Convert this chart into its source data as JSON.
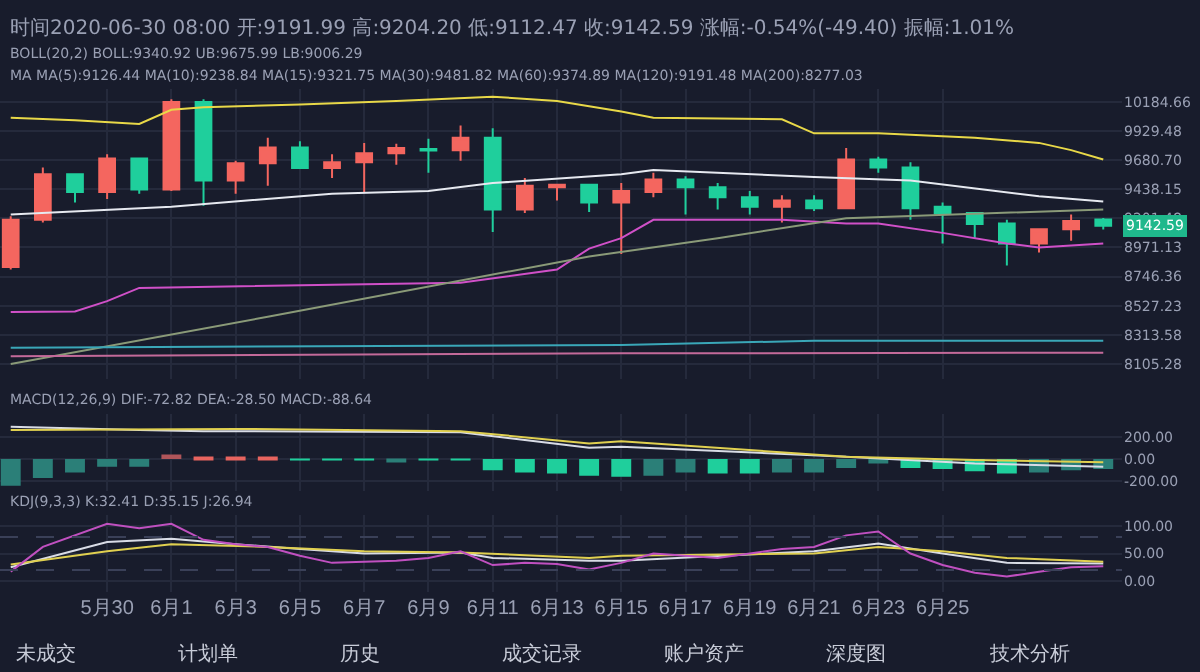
{
  "chart_data": [
    {
      "type": "candlestick",
      "title": "时间2020-06-30 08:00 开:9191.99 高:9204.20 低:9112.47 收:9142.59 涨幅:-0.54%(-49.40) 振幅:1.01%",
      "annotations": [
        "BOLL(20,2) BOLL:9340.92 UB:9675.99 LB:9006.29",
        "MA MA(5):9126.44 MA(10):9238.84 MA(15):9321.75 MA(30):9481.82 MA(60):9374.89 MA(120):9191.48 MA(200):8277.03",
        {
          "text": "9142.59",
          "y": 9142.59
        }
      ],
      "x": [
        "2020-05-27",
        "2020-05-28",
        "2020-05-29",
        "2020-05-30",
        "2020-05-31",
        "2020-06-01",
        "2020-06-02",
        "2020-06-03",
        "2020-06-04",
        "2020-06-05",
        "2020-06-06",
        "2020-06-07",
        "2020-06-08",
        "2020-06-09",
        "2020-06-10",
        "2020-06-11",
        "2020-06-12",
        "2020-06-13",
        "2020-06-14",
        "2020-06-15",
        "2020-06-16",
        "2020-06-17",
        "2020-06-18",
        "2020-06-19",
        "2020-06-20",
        "2020-06-21",
        "2020-06-22",
        "2020-06-23",
        "2020-06-24",
        "2020-06-25",
        "2020-06-26",
        "2020-06-27",
        "2020-06-28",
        "2020-06-29",
        "2020-06-30"
      ],
      "ohlc": [
        [
          8819,
          9218,
          8799,
          9189
        ],
        [
          9189,
          9618,
          9168,
          9561
        ],
        [
          9561,
          9565,
          9328,
          9414
        ],
        [
          9414,
          9729,
          9358,
          9693
        ],
        [
          9693,
          9700,
          9401,
          9435
        ],
        [
          9435,
          10206,
          9422,
          10183
        ],
        [
          10183,
          10206,
          9303,
          9509
        ],
        [
          9509,
          9675,
          9401,
          9653
        ],
        [
          9653,
          9871,
          9466,
          9787
        ],
        [
          9787,
          9840,
          9614,
          9614
        ],
        [
          9614,
          9729,
          9531,
          9662
        ],
        [
          9662,
          9826,
          9410,
          9737
        ],
        [
          9737,
          9818,
          9640,
          9782
        ],
        [
          9773,
          9862,
          9574,
          9760
        ],
        [
          9764,
          9976,
          9675,
          9871
        ],
        [
          9871,
          9953,
          9093,
          9273
        ],
        [
          9273,
          9531,
          9244,
          9466
        ],
        [
          9453,
          9480,
          9345,
          9474
        ],
        [
          9474,
          9480,
          9252,
          9328
        ],
        [
          9328,
          9488,
          8920,
          9422
        ],
        [
          9414,
          9574,
          9371,
          9518
        ],
        [
          9518,
          9544,
          9231,
          9453
        ],
        [
          9453,
          9488,
          9273,
          9371
        ],
        [
          9371,
          9422,
          9231,
          9294
        ],
        [
          9294,
          9388,
          9168,
          9345
        ],
        [
          9345,
          9388,
          9260,
          9282
        ],
        [
          9282,
          9782,
          9275,
          9685
        ],
        [
          9685,
          9707,
          9574,
          9618
        ],
        [
          9618,
          9662,
          9189,
          9282
        ],
        [
          9294,
          9328,
          9002,
          9239
        ],
        [
          9244,
          9250,
          9043,
          9155
        ],
        [
          9160,
          9189,
          8831,
          9002
        ],
        [
          9002,
          9120,
          8932,
          9114
        ],
        [
          9114,
          9231,
          9023,
          9180
        ],
        [
          9191.99,
          9204.2,
          9112.47,
          9142.59
        ]
      ],
      "colors": [
        "#f4665f",
        "#f4665f",
        "#1fcf9c",
        "#f4665f",
        "#1fcf9c",
        "#f4665f",
        "#1fcf9c",
        "#f4665f",
        "#f4665f",
        "#1fcf9c",
        "#f4665f",
        "#f4665f",
        "#f4665f",
        "#1fcf9c",
        "#f4665f",
        "#1fcf9c",
        "#f4665f",
        "#f4665f",
        "#1fcf9c",
        "#f4665f",
        "#f4665f",
        "#1fcf9c",
        "#1fcf9c",
        "#1fcf9c",
        "#f4665f",
        "#1fcf9c",
        "#f4665f",
        "#1fcf9c",
        "#1fcf9c",
        "#1fcf9c",
        "#1fcf9c",
        "#1fcf9c",
        "#f4665f",
        "#f4665f",
        "#1fcf9c"
      ],
      "series": [
        {
          "type": "line",
          "color": "#e8d848",
          "x": [
            "2020-05-27",
            "2020-05-29",
            "2020-05-31",
            "2020-06-01",
            "2020-06-02",
            "2020-06-05",
            "2020-06-08",
            "2020-06-11",
            "2020-06-13",
            "2020-06-14",
            "2020-06-15",
            "2020-06-16",
            "2020-06-20",
            "2020-06-21",
            "2020-06-23",
            "2020-06-26",
            "2020-06-28",
            "2020-06-29",
            "2020-06-30"
          ],
          "values": [
            10044,
            10021,
            9990,
            10113,
            10136,
            10160,
            10192,
            10229,
            10192,
            10145,
            10099,
            10044,
            10030,
            9908,
            9908,
            9871,
            9826,
            9764,
            9685
          ]
        },
        {
          "type": "line",
          "color": "#d050c8",
          "x": [
            "2020-05-27",
            "2020-05-29",
            "2020-05-30",
            "2020-05-31",
            "2020-06-10",
            "2020-06-13",
            "2020-06-14",
            "2020-06-15",
            "2020-06-16",
            "2020-06-20",
            "2020-06-22",
            "2020-06-23",
            "2020-06-25",
            "2020-06-27",
            "2020-06-28",
            "2020-06-30"
          ],
          "values": [
            8480,
            8484,
            8561,
            8660,
            8699,
            8799,
            8962,
            9043,
            9189,
            9189,
            9160,
            9160,
            9085,
            9002,
            8970,
            9002
          ]
        },
        {
          "type": "line",
          "color": "#e6e9f0",
          "x": [
            "2020-05-27",
            "2020-06-01",
            "2020-06-06",
            "2020-06-09",
            "2020-06-11",
            "2020-06-15",
            "2020-06-16",
            "2020-06-21",
            "2020-06-24",
            "2020-06-28",
            "2020-06-30"
          ],
          "values": [
            9231,
            9294,
            9401,
            9422,
            9488,
            9561,
            9596,
            9539,
            9509,
            9380,
            9337
          ]
        },
        {
          "type": "line",
          "color": "#8a9a78",
          "x": [
            "2020-05-27",
            "2020-06-04",
            "2020-06-14",
            "2020-06-18",
            "2020-06-22",
            "2020-06-30"
          ],
          "values": [
            8105,
            8445,
            8900,
            9043,
            9201,
            9273
          ]
        },
        {
          "type": "line",
          "color": "#3aa7b8",
          "x": [
            "2020-05-27",
            "2020-06-15",
            "2020-06-21",
            "2020-06-30"
          ],
          "values": [
            8220,
            8240,
            8270,
            8270
          ]
        },
        {
          "type": "line",
          "color": "#c46a9a",
          "x": [
            "2020-05-27",
            "2020-06-15",
            "2020-06-30"
          ],
          "values": [
            8160,
            8180,
            8185
          ]
        }
      ],
      "log": true,
      "ylim": [
        8000,
        10300
      ],
      "yticks": [
        10184.66,
        9929.48,
        {
          "value": 9680.7,
          "label": "9680.70"
        },
        9438.15,
        9201.48,
        8971.13,
        8746.36,
        8527.23,
        8313.58,
        8105.28
      ],
      "xlim": [
        "2020-05-26T16:00",
        "2020-06-30T14:00"
      ],
      "xticks": [
        {
          "value": "2020-05-30",
          "label": null
        },
        {
          "value": "2020-06-01",
          "label": null
        },
        {
          "value": "2020-06-03",
          "label": null
        },
        {
          "value": "2020-06-05",
          "label": null
        },
        {
          "value": "2020-06-07",
          "label": null
        },
        {
          "value": "2020-06-09",
          "label": null
        },
        {
          "value": "2020-06-11",
          "label": null
        },
        {
          "value": "2020-06-13",
          "label": null
        },
        {
          "value": "2020-06-15",
          "label": null
        },
        {
          "value": "2020-06-17",
          "label": null
        },
        {
          "value": "2020-06-19",
          "label": null
        },
        {
          "value": "2020-06-21",
          "label": null
        },
        {
          "value": "2020-06-23",
          "label": null
        },
        {
          "value": "2020-06-25",
          "label": null
        }
      ],
      "tick_labels": "y",
      "grid": true
    },
    {
      "type": "bar",
      "title": "MACD(12,26,9) DIF:-72.82 DEA:-28.50 MACD:-88.64",
      "x": [
        "2020-05-27",
        "2020-05-28",
        "2020-05-29",
        "2020-05-30",
        "2020-05-31",
        "2020-06-01",
        "2020-06-02",
        "2020-06-03",
        "2020-06-04",
        "2020-06-05",
        "2020-06-06",
        "2020-06-07",
        "2020-06-08",
        "2020-06-09",
        "2020-06-10",
        "2020-06-11",
        "2020-06-12",
        "2020-06-13",
        "2020-06-14",
        "2020-06-15",
        "2020-06-16",
        "2020-06-17",
        "2020-06-18",
        "2020-06-19",
        "2020-06-20",
        "2020-06-21",
        "2020-06-22",
        "2020-06-23",
        "2020-06-24",
        "2020-06-25",
        "2020-06-26",
        "2020-06-27",
        "2020-06-28",
        "2020-06-29",
        "2020-06-30"
      ],
      "values": [
        -240,
        -170,
        -120,
        -70,
        -70,
        40,
        10,
        10,
        10,
        -10,
        -10,
        -10,
        -30,
        -10,
        -10,
        -100,
        -120,
        -130,
        -150,
        -160,
        -150,
        -120,
        -130,
        -130,
        -120,
        -120,
        -80,
        -40,
        -80,
        -90,
        -110,
        -130,
        -120,
        -100,
        -90
      ],
      "colors": [
        "#2b7f78",
        "#2b7f78",
        "#2b7f78",
        "#2b7f78",
        "#2b7f78",
        "#b0555a",
        "#e8645f",
        "#e8645f",
        "#e8645f",
        "#1fcf9c",
        "#1fcf9c",
        "#1fcf9c",
        "#2b7f78",
        "#1fcf9c",
        "#1fcf9c",
        "#1fcf9c",
        "#1fcf9c",
        "#1fcf9c",
        "#1fcf9c",
        "#1fcf9c",
        "#2b7f78",
        "#2b7f78",
        "#1fcf9c",
        "#1fcf9c",
        "#2b7f78",
        "#2b7f78",
        "#2b7f78",
        "#2b7f78",
        "#1fcf9c",
        "#1fcf9c",
        "#1fcf9c",
        "#1fcf9c",
        "#2b7f78",
        "#2b7f78",
        "#2b7f78"
      ],
      "series": [
        {
          "type": "line",
          "color": "#d9dce6",
          "x": [
            "2020-05-27",
            "2020-05-31",
            "2020-06-02",
            "2020-06-10",
            "2020-06-12",
            "2020-06-14",
            "2020-06-15",
            "2020-06-22",
            "2020-06-26",
            "2020-06-30"
          ],
          "values": [
            290,
            260,
            250,
            240,
            170,
            100,
            110,
            20,
            -40,
            -70
          ]
        },
        {
          "type": "line",
          "color": "#e0d050",
          "x": [
            "2020-05-27",
            "2020-06-03",
            "2020-06-10",
            "2020-06-14",
            "2020-06-15",
            "2020-06-22",
            "2020-06-26",
            "2020-06-30"
          ],
          "values": [
            260,
            270,
            250,
            140,
            160,
            20,
            -10,
            -30
          ]
        }
      ],
      "ylim": [
        -290,
        400
      ],
      "yticks": [
        {
          "value": 200,
          "label": "200.00"
        },
        {
          "value": 0,
          "label": "0.00"
        },
        {
          "value": -200,
          "label": "-200.00"
        }
      ],
      "xlim": [
        "2020-05-26T16:00",
        "2020-06-30T14:00"
      ],
      "xticks": [
        {
          "value": "2020-05-30",
          "label": null
        },
        {
          "value": "2020-06-01",
          "label": null
        },
        {
          "value": "2020-06-03",
          "label": null
        },
        {
          "value": "2020-06-05",
          "label": null
        },
        {
          "value": "2020-06-07",
          "label": null
        },
        {
          "value": "2020-06-09",
          "label": null
        },
        {
          "value": "2020-06-11",
          "label": null
        },
        {
          "value": "2020-06-13",
          "label": null
        },
        {
          "value": "2020-06-15",
          "label": null
        },
        {
          "value": "2020-06-17",
          "label": null
        },
        {
          "value": "2020-06-19",
          "label": null
        },
        {
          "value": "2020-06-21",
          "label": null
        },
        {
          "value": "2020-06-23",
          "label": null
        },
        {
          "value": "2020-06-25",
          "label": null
        }
      ],
      "tick_labels": "y",
      "grid": true
    },
    {
      "type": "line",
      "title": "KDJ(9,3,3) K:32.41 D:35.15 J:26.94",
      "annotations": [
        "未成交",
        "计划单",
        "历史",
        "成交记录",
        "账户资产",
        "深度图",
        "技术分析"
      ],
      "series": [
        {
          "color": "#d9dce6",
          "x": [
            "2020-05-27",
            "2020-05-30",
            "2020-06-01",
            "2020-06-03",
            "2020-06-05",
            "2020-06-07",
            "2020-06-10",
            "2020-06-11",
            "2020-06-14",
            "2020-06-15",
            "2020-06-21",
            "2020-06-23",
            "2020-06-25",
            "2020-06-27",
            "2020-06-30"
          ],
          "values": [
            25,
            71,
            77,
            67,
            58,
            50,
            52,
            42,
            37,
            37,
            54,
            68,
            50,
            33,
            32
          ]
        },
        {
          "color": "#e0d050",
          "x": [
            "2020-05-27",
            "2020-05-30",
            "2020-06-01",
            "2020-06-04",
            "2020-06-07",
            "2020-06-10",
            "2020-06-14",
            "2020-06-15",
            "2020-06-21",
            "2020-06-23",
            "2020-06-25",
            "2020-06-27",
            "2020-06-30"
          ],
          "values": [
            30,
            54,
            67,
            62,
            54,
            52,
            42,
            46,
            50,
            62,
            54,
            42,
            35
          ]
        },
        {
          "color": "#c050c0",
          "x": [
            "2020-05-27",
            "2020-05-28",
            "2020-05-30",
            "2020-05-31",
            "2020-06-01",
            "2020-06-02",
            "2020-06-03",
            "2020-06-04",
            "2020-06-05",
            "2020-06-06",
            "2020-06-08",
            "2020-06-09",
            "2020-06-10",
            "2020-06-11",
            "2020-06-12",
            "2020-06-13",
            "2020-06-14",
            "2020-06-15",
            "2020-06-16",
            "2020-06-18",
            "2020-06-20",
            "2020-06-21",
            "2020-06-22",
            "2020-06-23",
            "2020-06-24",
            "2020-06-25",
            "2020-06-26",
            "2020-06-27",
            "2020-06-28",
            "2020-06-29",
            "2020-06-30"
          ],
          "values": [
            17,
            62,
            104,
            96,
            104,
            75,
            67,
            62,
            46,
            33,
            37,
            42,
            54,
            29,
            33,
            31,
            21,
            33,
            50,
            42,
            58,
            62,
            83,
            90,
            50,
            29,
            15,
            8,
            17,
            25,
            27
          ]
        }
      ],
      "ref_lines": [
        {
          "axis": "y",
          "value": 80,
          "line_style": "dashed",
          "color": "#3a4058"
        },
        {
          "axis": "y",
          "value": 20,
          "line_style": "dashed",
          "color": "#3a4058"
        }
      ],
      "ylim": [
        -20,
        120
      ],
      "yticks": [
        {
          "value": 100,
          "label": "100.00"
        },
        {
          "value": 50,
          "label": "50.00"
        },
        {
          "value": 0,
          "label": "0.00"
        }
      ],
      "xlim": [
        "2020-05-26T16:00",
        "2020-06-30T14:00"
      ],
      "xticks": [
        {
          "value": "2020-05-30",
          "label": "5月30"
        },
        {
          "value": "2020-06-01",
          "label": "6月1"
        },
        {
          "value": "2020-06-03",
          "label": "6月3"
        },
        {
          "value": "2020-06-05",
          "label": "6月5"
        },
        {
          "value": "2020-06-07",
          "label": "6月7"
        },
        {
          "value": "2020-06-09",
          "label": "6月9"
        },
        {
          "value": "2020-06-11",
          "label": "6月11"
        },
        {
          "value": "2020-06-13",
          "label": "6月13"
        },
        {
          "value": "2020-06-15",
          "label": "6月15"
        },
        {
          "value": "2020-06-17",
          "label": "6月17"
        },
        {
          "value": "2020-06-19",
          "label": "6月19"
        },
        {
          "value": "2020-06-21",
          "label": "6月21"
        },
        {
          "value": "2020-06-23",
          "label": "6月23"
        },
        {
          "value": "2020-06-25",
          "label": "6月25"
        }
      ],
      "grid": true
    }
  ]
}
